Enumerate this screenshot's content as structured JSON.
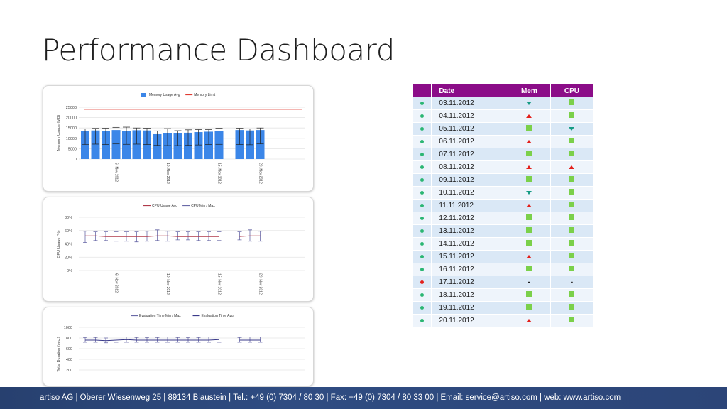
{
  "page": {
    "title": "Performance Dashboard"
  },
  "footer": {
    "text": "artiso AG | Oberer Wiesenweg 25 | 89134 Blaustein | Tel.: +49 (0) 7304 / 80 30 | Fax: +49 (0) 7304 / 80 33 00 | Email: service@artiso.com | web: www.artiso.com"
  },
  "chart_data": [
    {
      "type": "bar",
      "title": "",
      "xlabel": "",
      "ylabel": "Memory Usage (MB)",
      "ylim": [
        0,
        25000
      ],
      "yticks": [
        "0",
        "5000",
        "10000",
        "15000",
        "20000",
        "25000"
      ],
      "xtick_labels": [
        "6. Nov 2012",
        "10. Nov 2012",
        "15. Nov 2012",
        "20. Nov 2012"
      ],
      "legend": {
        "placement": "top-center",
        "bar_label": "Memory Usage Avg",
        "line_label": "Memory Limit"
      },
      "limit": 24000,
      "x": [
        "03.11.2012",
        "04.11.2012",
        "05.11.2012",
        "06.11.2012",
        "07.11.2012",
        "08.11.2012",
        "09.11.2012",
        "10.11.2012",
        "11.11.2012",
        "12.11.2012",
        "13.11.2012",
        "14.11.2012",
        "15.11.2012",
        "16.11.2012",
        "17.11.2012",
        "18.11.2012",
        "19.11.2012",
        "20.11.2012"
      ],
      "values": [
        13500,
        13800,
        13700,
        14000,
        13600,
        13900,
        13800,
        12000,
        12500,
        12600,
        12700,
        13000,
        13200,
        13500,
        null,
        14000,
        13800,
        14000
      ],
      "err_high": [
        14500,
        14800,
        14900,
        15300,
        15400,
        15000,
        14900,
        13600,
        14700,
        13700,
        14100,
        14200,
        14200,
        14900,
        null,
        14900,
        14500,
        15000
      ],
      "err_low": [
        7000,
        7200,
        7000,
        7300,
        7100,
        7200,
        7000,
        6600,
        6500,
        6500,
        6600,
        6800,
        7000,
        7100,
        null,
        7000,
        6900,
        7300
      ],
      "colors": {
        "bar": "#3b86e8",
        "limit_line": "#e03b32",
        "error_bar": "#222222"
      },
      "grid": true
    },
    {
      "type": "line",
      "title": "",
      "xlabel": "",
      "ylabel": "CPU Usage (%)",
      "ylim": [
        0,
        80
      ],
      "yticks": [
        "0%",
        "20%",
        "40%",
        "60%",
        "80%"
      ],
      "xtick_labels": [
        "6. Nov 2012",
        "10. Nov 2012",
        "15. Nov 2012",
        "20. Nov 2012"
      ],
      "legend": {
        "placement": "top-center",
        "series_label": "CPU Usage Avg",
        "range_label": "CPU Min / Max"
      },
      "x": [
        "03.11.2012",
        "04.11.2012",
        "05.11.2012",
        "06.11.2012",
        "07.11.2012",
        "08.11.2012",
        "09.11.2012",
        "10.11.2012",
        "11.11.2012",
        "12.11.2012",
        "13.11.2012",
        "14.11.2012",
        "15.11.2012",
        "16.11.2012",
        "17.11.2012",
        "18.11.2012",
        "19.11.2012",
        "20.11.2012"
      ],
      "values": [
        52,
        52,
        51,
        51,
        51,
        51,
        51,
        52,
        52,
        51,
        51,
        51,
        51,
        51,
        null,
        51,
        52,
        52
      ],
      "max": [
        59,
        58,
        58,
        58,
        58,
        58,
        59,
        61,
        59,
        58,
        58,
        58,
        58,
        58,
        null,
        58,
        61,
        59
      ],
      "min": [
        42,
        45,
        45,
        44,
        44,
        43,
        44,
        45,
        44,
        46,
        46,
        45,
        45,
        45,
        null,
        46,
        44,
        44
      ],
      "colors": {
        "line": "#b03a4a",
        "range": "#6a6aa8"
      },
      "grid": true
    },
    {
      "type": "line",
      "title": "",
      "xlabel": "",
      "ylabel": "Total Duration (sec.)",
      "ylim": [
        200,
        1000
      ],
      "yticks": [
        "200",
        "400",
        "600",
        "800",
        "1000"
      ],
      "legend": {
        "placement": "top-center",
        "range_label": "Evaluation Time Min / Max",
        "series_label": "Evaluation Time Avg"
      },
      "x": [
        "03.11.2012",
        "04.11.2012",
        "05.11.2012",
        "06.11.2012",
        "07.11.2012",
        "08.11.2012",
        "09.11.2012",
        "10.11.2012",
        "11.11.2012",
        "12.11.2012",
        "13.11.2012",
        "14.11.2012",
        "15.11.2012",
        "16.11.2012",
        "17.11.2012",
        "18.11.2012",
        "19.11.2012",
        "20.11.2012"
      ],
      "values": [
        760,
        760,
        750,
        760,
        770,
        760,
        760,
        760,
        760,
        760,
        760,
        760,
        760,
        770,
        null,
        760,
        760,
        760
      ],
      "max": [
        810,
        810,
        800,
        820,
        820,
        810,
        810,
        810,
        820,
        810,
        810,
        810,
        820,
        820,
        null,
        810,
        820,
        820
      ],
      "min": [
        720,
        720,
        710,
        720,
        720,
        720,
        720,
        720,
        720,
        720,
        720,
        720,
        720,
        720,
        null,
        720,
        720,
        720
      ],
      "colors": {
        "line": "#3a3a8a",
        "range": "#6a6aa8"
      },
      "grid": true
    }
  ],
  "status_table": {
    "headers": {
      "date": "Date",
      "mem": "Mem",
      "cpu": "CPU"
    },
    "colors": {
      "ok": "#7bd04a",
      "up": "#e3201b",
      "down": "#159b84",
      "dot_ok": "#2bb673",
      "dot_fail": "#e3201b"
    },
    "rows": [
      {
        "date": "03.11.2012",
        "dot": "ok",
        "mem": "down",
        "cpu": "ok"
      },
      {
        "date": "04.11.2012",
        "dot": "ok",
        "mem": "up",
        "cpu": "ok"
      },
      {
        "date": "05.11.2012",
        "dot": "ok",
        "mem": "ok",
        "cpu": "down"
      },
      {
        "date": "06.11.2012",
        "dot": "ok",
        "mem": "up",
        "cpu": "ok"
      },
      {
        "date": "07.11.2012",
        "dot": "ok",
        "mem": "ok",
        "cpu": "ok"
      },
      {
        "date": "08.11.2012",
        "dot": "ok",
        "mem": "up",
        "cpu": "up"
      },
      {
        "date": "09.11.2012",
        "dot": "ok",
        "mem": "ok",
        "cpu": "ok"
      },
      {
        "date": "10.11.2012",
        "dot": "ok",
        "mem": "down",
        "cpu": "ok"
      },
      {
        "date": "11.11.2012",
        "dot": "ok",
        "mem": "up",
        "cpu": "ok"
      },
      {
        "date": "12.11.2012",
        "dot": "ok",
        "mem": "ok",
        "cpu": "ok"
      },
      {
        "date": "13.11.2012",
        "dot": "ok",
        "mem": "ok",
        "cpu": "ok"
      },
      {
        "date": "14.11.2012",
        "dot": "ok",
        "mem": "ok",
        "cpu": "ok"
      },
      {
        "date": "15.11.2012",
        "dot": "ok",
        "mem": "up",
        "cpu": "ok"
      },
      {
        "date": "16.11.2012",
        "dot": "ok",
        "mem": "ok",
        "cpu": "ok"
      },
      {
        "date": "17.11.2012",
        "dot": "fail",
        "mem": "none",
        "cpu": "none",
        "mem_text": "-",
        "cpu_text": "-"
      },
      {
        "date": "18.11.2012",
        "dot": "ok",
        "mem": "ok",
        "cpu": "ok"
      },
      {
        "date": "19.11.2012",
        "dot": "ok",
        "mem": "ok",
        "cpu": "ok"
      },
      {
        "date": "20.11.2012",
        "dot": "ok",
        "mem": "up",
        "cpu": "ok"
      }
    ]
  }
}
